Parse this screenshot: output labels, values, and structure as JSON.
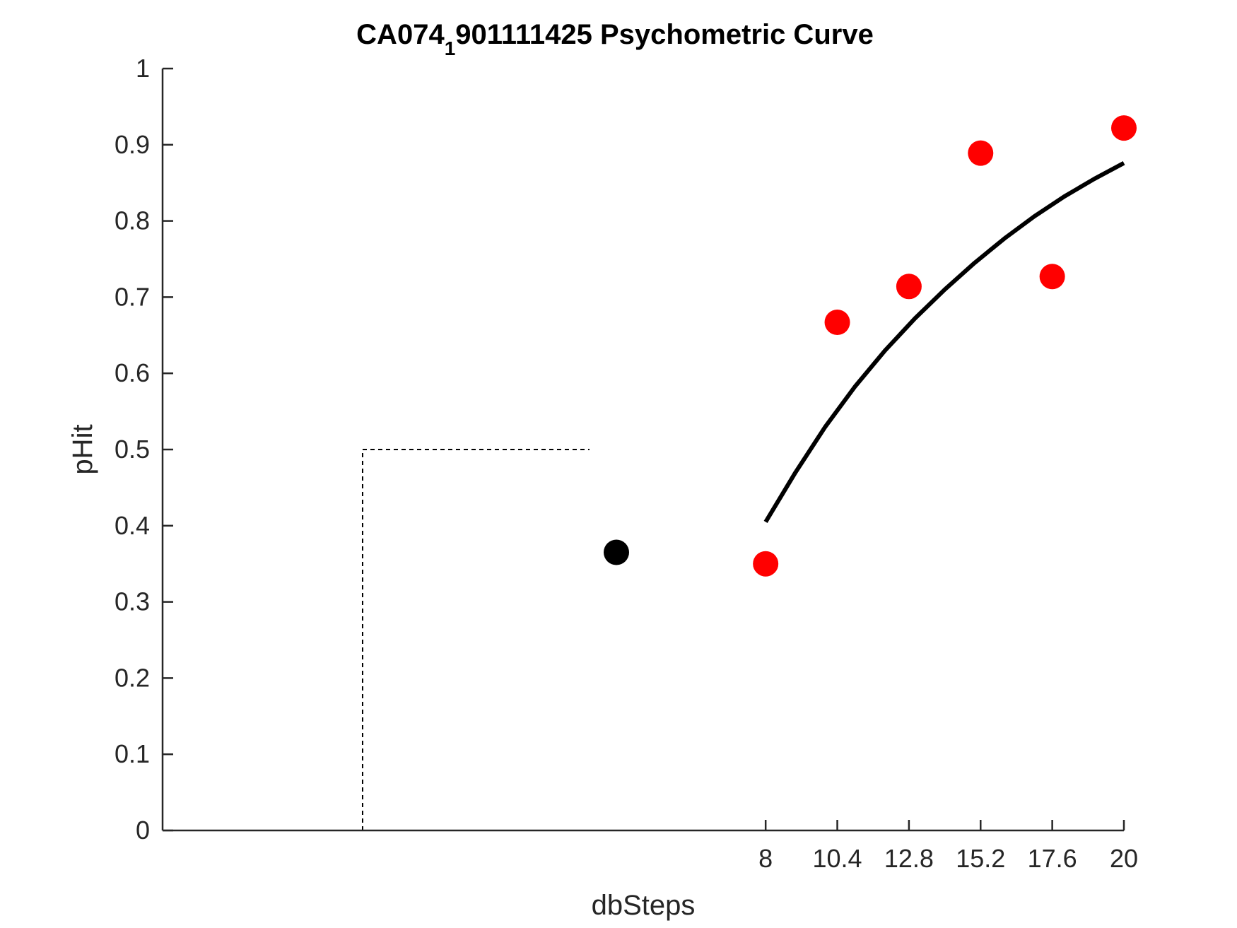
{
  "chart_data": {
    "type": "scatter",
    "title": "CA074",
    "title_subscript": "1",
    "title_rest": "901111425 Psychometric Curve",
    "xlabel": "dbSteps",
    "ylabel": "pHit",
    "xlim": [
      -12.2,
      20
    ],
    "ylim": [
      0,
      1
    ],
    "x_ticks": [
      8,
      10.4,
      12.8,
      15.2,
      17.6,
      20
    ],
    "x_tick_labels": [
      "8",
      "10.4",
      "12.8",
      "15.2",
      "17.6",
      "20"
    ],
    "y_ticks": [
      0,
      0.1,
      0.2,
      0.3,
      0.4,
      0.5,
      0.6,
      0.7,
      0.8,
      0.9,
      1
    ],
    "y_tick_labels": [
      "0",
      "0.1",
      "0.2",
      "0.3",
      "0.4",
      "0.5",
      "0.6",
      "0.7",
      "0.8",
      "0.9",
      "1"
    ],
    "grid": false,
    "series": [
      {
        "kind": "points",
        "color": "#ff0000",
        "x": [
          8,
          10.4,
          12.8,
          15.2,
          17.6,
          20
        ],
        "y": [
          0.35,
          0.667,
          0.714,
          0.889,
          0.727,
          0.922
        ]
      },
      {
        "kind": "points",
        "color": "#000000",
        "x": [
          3
        ],
        "y": [
          0.365
        ]
      },
      {
        "kind": "fit-curve",
        "color": "#000000",
        "x": [
          8,
          9,
          10,
          11,
          12,
          13,
          14,
          15,
          16,
          17,
          18,
          19,
          20
        ],
        "y": [
          0.405,
          0.47,
          0.53,
          0.583,
          0.63,
          0.672,
          0.71,
          0.745,
          0.777,
          0.806,
          0.832,
          0.855,
          0.876
        ]
      },
      {
        "kind": "reference-line",
        "style": "dotted",
        "color": "#000000",
        "x": [
          -5.5,
          -5.5,
          2.1
        ],
        "y": [
          0,
          0.5,
          0.5
        ]
      }
    ]
  }
}
